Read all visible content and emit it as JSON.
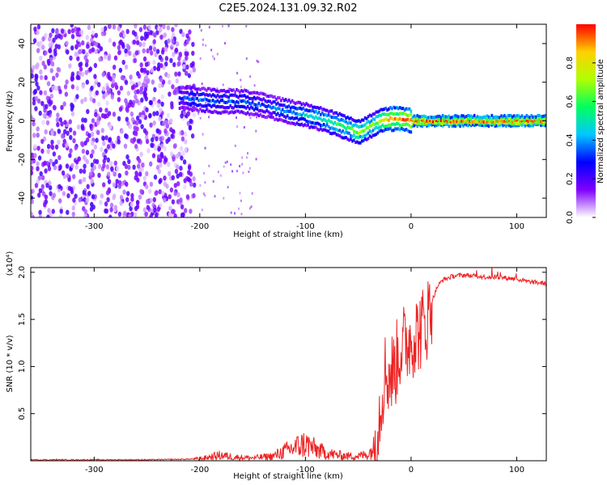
{
  "figure_title": "C2E5.2024.131.09.32.R02",
  "colors": {
    "snr_line": "#ee2222",
    "colorbar": [
      "#ffffff",
      "#8000ff",
      "#0000ff",
      "#00c8ff",
      "#00ff60",
      "#b0ff00",
      "#ffd000",
      "#ff0000"
    ]
  },
  "chart_data": [
    {
      "type": "heatmap",
      "title": "",
      "xlabel": "Height of straight line (km)",
      "ylabel": "Frequency (Hz)",
      "xlim": [
        -360,
        128
      ],
      "ylim": [
        -50,
        50
      ],
      "x_ticks": [
        -300,
        -200,
        -100,
        0,
        100
      ],
      "x_tick_labels": [
        "-300",
        "-200",
        "-100",
        "0",
        "100"
      ],
      "y_ticks": [
        -40,
        -20,
        0,
        20,
        40
      ],
      "y_tick_labels": [
        "-40",
        "-20",
        "0",
        "20",
        "40"
      ],
      "colorbar": {
        "label": "Normalized spectral amplitude",
        "range": [
          0,
          1
        ],
        "ticks": [
          0.0,
          0.2,
          0.4,
          0.6,
          0.8
        ],
        "tick_labels": [
          "0.0",
          "0.2",
          "0.4",
          "0.6",
          "0.8"
        ],
        "colormap": "rainbow (white → violet → blue → cyan → green → yellow → red)"
      },
      "noise_region": {
        "x_range": [
          -360,
          -205
        ],
        "y_range": [
          -50,
          50
        ],
        "amplitude": 0.2
      },
      "ridge": {
        "x": [
          -220,
          -200,
          -180,
          -160,
          -140,
          -120,
          -100,
          -80,
          -60,
          -50,
          -40,
          -30,
          -20,
          -10,
          0,
          20,
          60,
          100,
          128
        ],
        "y": [
          12,
          11,
          10,
          10,
          8,
          5,
          3,
          0,
          -4,
          -6,
          -3,
          0,
          1,
          1,
          0,
          0,
          0,
          0,
          0
        ],
        "amplitude": [
          0.3,
          0.35,
          0.35,
          0.35,
          0.3,
          0.4,
          0.45,
          0.5,
          0.6,
          0.65,
          0.6,
          0.7,
          0.85,
          0.9,
          0.95,
          0.95,
          0.9,
          0.95,
          0.9
        ]
      }
    },
    {
      "type": "line",
      "title": "",
      "xlabel": "Height of straight line (km)",
      "ylabel": "SNR (10 * v/v)",
      "y_multiplier_label": "(x10⁴)",
      "xlim": [
        -360,
        128
      ],
      "ylim": [
        0,
        2.05
      ],
      "x_ticks": [
        -300,
        -200,
        -100,
        0,
        100
      ],
      "x_tick_labels": [
        "-300",
        "-200",
        "-100",
        "0",
        "100"
      ],
      "y_ticks": [
        0.5,
        1.0,
        1.5,
        2.0
      ],
      "y_tick_labels": [
        "0.5",
        "1.0",
        "1.5",
        "2.0"
      ],
      "series": [
        {
          "x": [
            -360,
            -300,
            -250,
            -220,
            -200,
            -190,
            -180,
            -170,
            -150,
            -130,
            -120,
            -110,
            -100,
            -90,
            -80,
            -70,
            -60,
            -50,
            -40,
            -35,
            -30,
            -25,
            -20,
            -15,
            -10,
            -5,
            0,
            5,
            10,
            15,
            20,
            25,
            30,
            40,
            50,
            60,
            70,
            80,
            90,
            100,
            110,
            120,
            128
          ],
          "y": [
            0.01,
            0.01,
            0.01,
            0.015,
            0.02,
            0.04,
            0.06,
            0.04,
            0.03,
            0.05,
            0.1,
            0.14,
            0.18,
            0.12,
            0.08,
            0.06,
            0.05,
            0.05,
            0.07,
            0.15,
            0.5,
            0.95,
            0.9,
            1.0,
            1.2,
            1.25,
            1.3,
            1.35,
            1.4,
            1.5,
            1.7,
            1.85,
            1.92,
            1.96,
            1.97,
            1.96,
            1.95,
            1.95,
            1.94,
            1.93,
            1.9,
            1.89,
            1.88
          ]
        }
      ]
    }
  ]
}
